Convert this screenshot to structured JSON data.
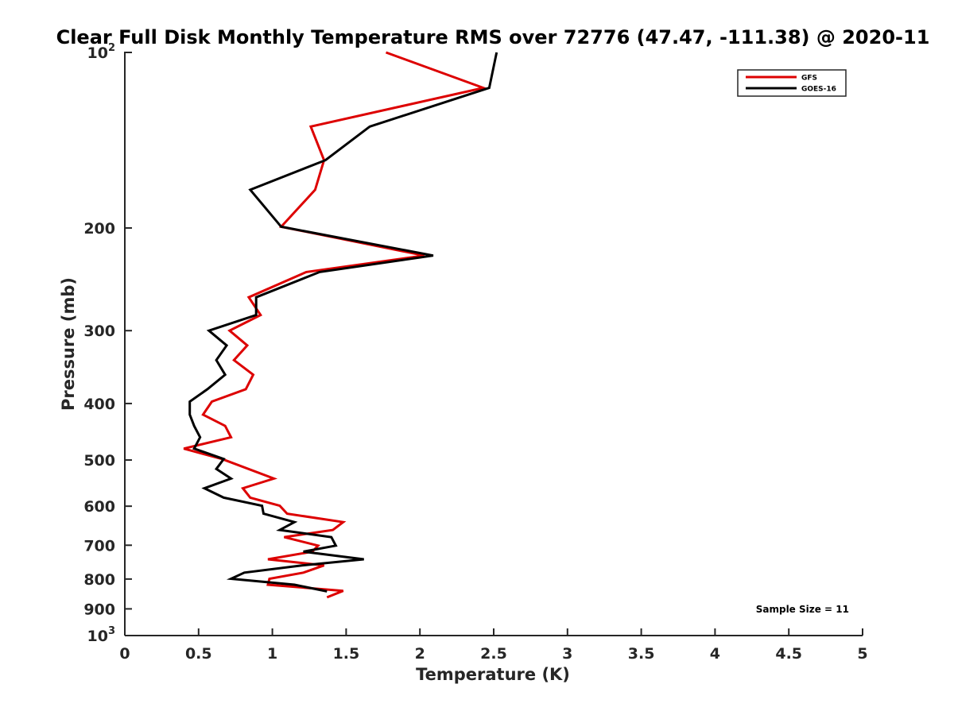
{
  "chart_data": {
    "type": "line",
    "title": "Clear Full Disk Monthly Temperature RMS over 72776 (47.47, -111.38) @ 2020-11",
    "xlabel": "Temperature (K)",
    "ylabel": "Pressure (mb)",
    "xlim": [
      0,
      5
    ],
    "ylim": [
      100,
      1000
    ],
    "y_scale": "log",
    "y_reversed": true,
    "x_ticks": [
      "0",
      "0.5",
      "1",
      "1.5",
      "2",
      "2.5",
      "3",
      "3.5",
      "4",
      "4.5",
      "5"
    ],
    "y_ticks": [
      {
        "value": 100,
        "base": "10",
        "exp": "2"
      },
      {
        "value": 200,
        "label": "200"
      },
      {
        "value": 300,
        "label": "300"
      },
      {
        "value": 400,
        "label": "400"
      },
      {
        "value": 500,
        "label": "500"
      },
      {
        "value": 600,
        "label": "600"
      },
      {
        "value": 700,
        "label": "700"
      },
      {
        "value": 800,
        "label": "800"
      },
      {
        "value": 900,
        "label": "900"
      },
      {
        "value": 1000,
        "base": "10",
        "exp": "3"
      }
    ],
    "grid": false,
    "legend_position": "top-right",
    "annotation": "Sample Size = 11",
    "series": [
      {
        "name": "GFS",
        "color": "#dd0000",
        "points": [
          [
            1.77,
            100
          ],
          [
            2.43,
            115
          ],
          [
            1.26,
            134
          ],
          [
            1.35,
            153
          ],
          [
            1.29,
            172
          ],
          [
            1.06,
            199
          ],
          [
            2.03,
            223
          ],
          [
            1.23,
            238
          ],
          [
            0.84,
            263
          ],
          [
            0.92,
            282
          ],
          [
            0.71,
            300
          ],
          [
            0.83,
            318
          ],
          [
            0.74,
            337
          ],
          [
            0.87,
            357
          ],
          [
            0.82,
            378
          ],
          [
            0.59,
            397
          ],
          [
            0.53,
            418
          ],
          [
            0.68,
            437
          ],
          [
            0.72,
            457
          ],
          [
            0.4,
            478
          ],
          [
            0.66,
            498
          ],
          [
            1.01,
            538
          ],
          [
            0.8,
            559
          ],
          [
            0.85,
            580
          ],
          [
            1.05,
            599
          ],
          [
            1.1,
            618
          ],
          [
            1.48,
            639
          ],
          [
            1.41,
            659
          ],
          [
            1.08,
            678
          ],
          [
            1.31,
            701
          ],
          [
            1.27,
            718
          ],
          [
            0.97,
            740
          ],
          [
            1.35,
            758
          ],
          [
            1.21,
            780
          ],
          [
            0.98,
            799
          ],
          [
            0.97,
            818
          ],
          [
            1.48,
            838
          ],
          [
            1.37,
            860
          ]
        ]
      },
      {
        "name": "GOES-16",
        "color": "#000000",
        "points": [
          [
            2.52,
            100
          ],
          [
            2.47,
            115
          ],
          [
            1.66,
            134
          ],
          [
            1.36,
            153
          ],
          [
            0.85,
            172
          ],
          [
            1.06,
            199
          ],
          [
            2.09,
            223
          ],
          [
            1.32,
            238
          ],
          [
            0.89,
            263
          ],
          [
            0.89,
            282
          ],
          [
            0.57,
            300
          ],
          [
            0.69,
            318
          ],
          [
            0.62,
            337
          ],
          [
            0.68,
            357
          ],
          [
            0.56,
            378
          ],
          [
            0.44,
            397
          ],
          [
            0.44,
            418
          ],
          [
            0.47,
            437
          ],
          [
            0.51,
            457
          ],
          [
            0.47,
            478
          ],
          [
            0.67,
            498
          ],
          [
            0.62,
            518
          ],
          [
            0.72,
            538
          ],
          [
            0.54,
            559
          ],
          [
            0.67,
            580
          ],
          [
            0.93,
            599
          ],
          [
            0.94,
            618
          ],
          [
            1.15,
            639
          ],
          [
            1.05,
            659
          ],
          [
            1.4,
            678
          ],
          [
            1.43,
            701
          ],
          [
            1.21,
            718
          ],
          [
            1.62,
            740
          ],
          [
            1.2,
            758
          ],
          [
            0.81,
            780
          ],
          [
            0.72,
            799
          ],
          [
            1.15,
            818
          ],
          [
            1.37,
            840
          ]
        ]
      }
    ]
  }
}
